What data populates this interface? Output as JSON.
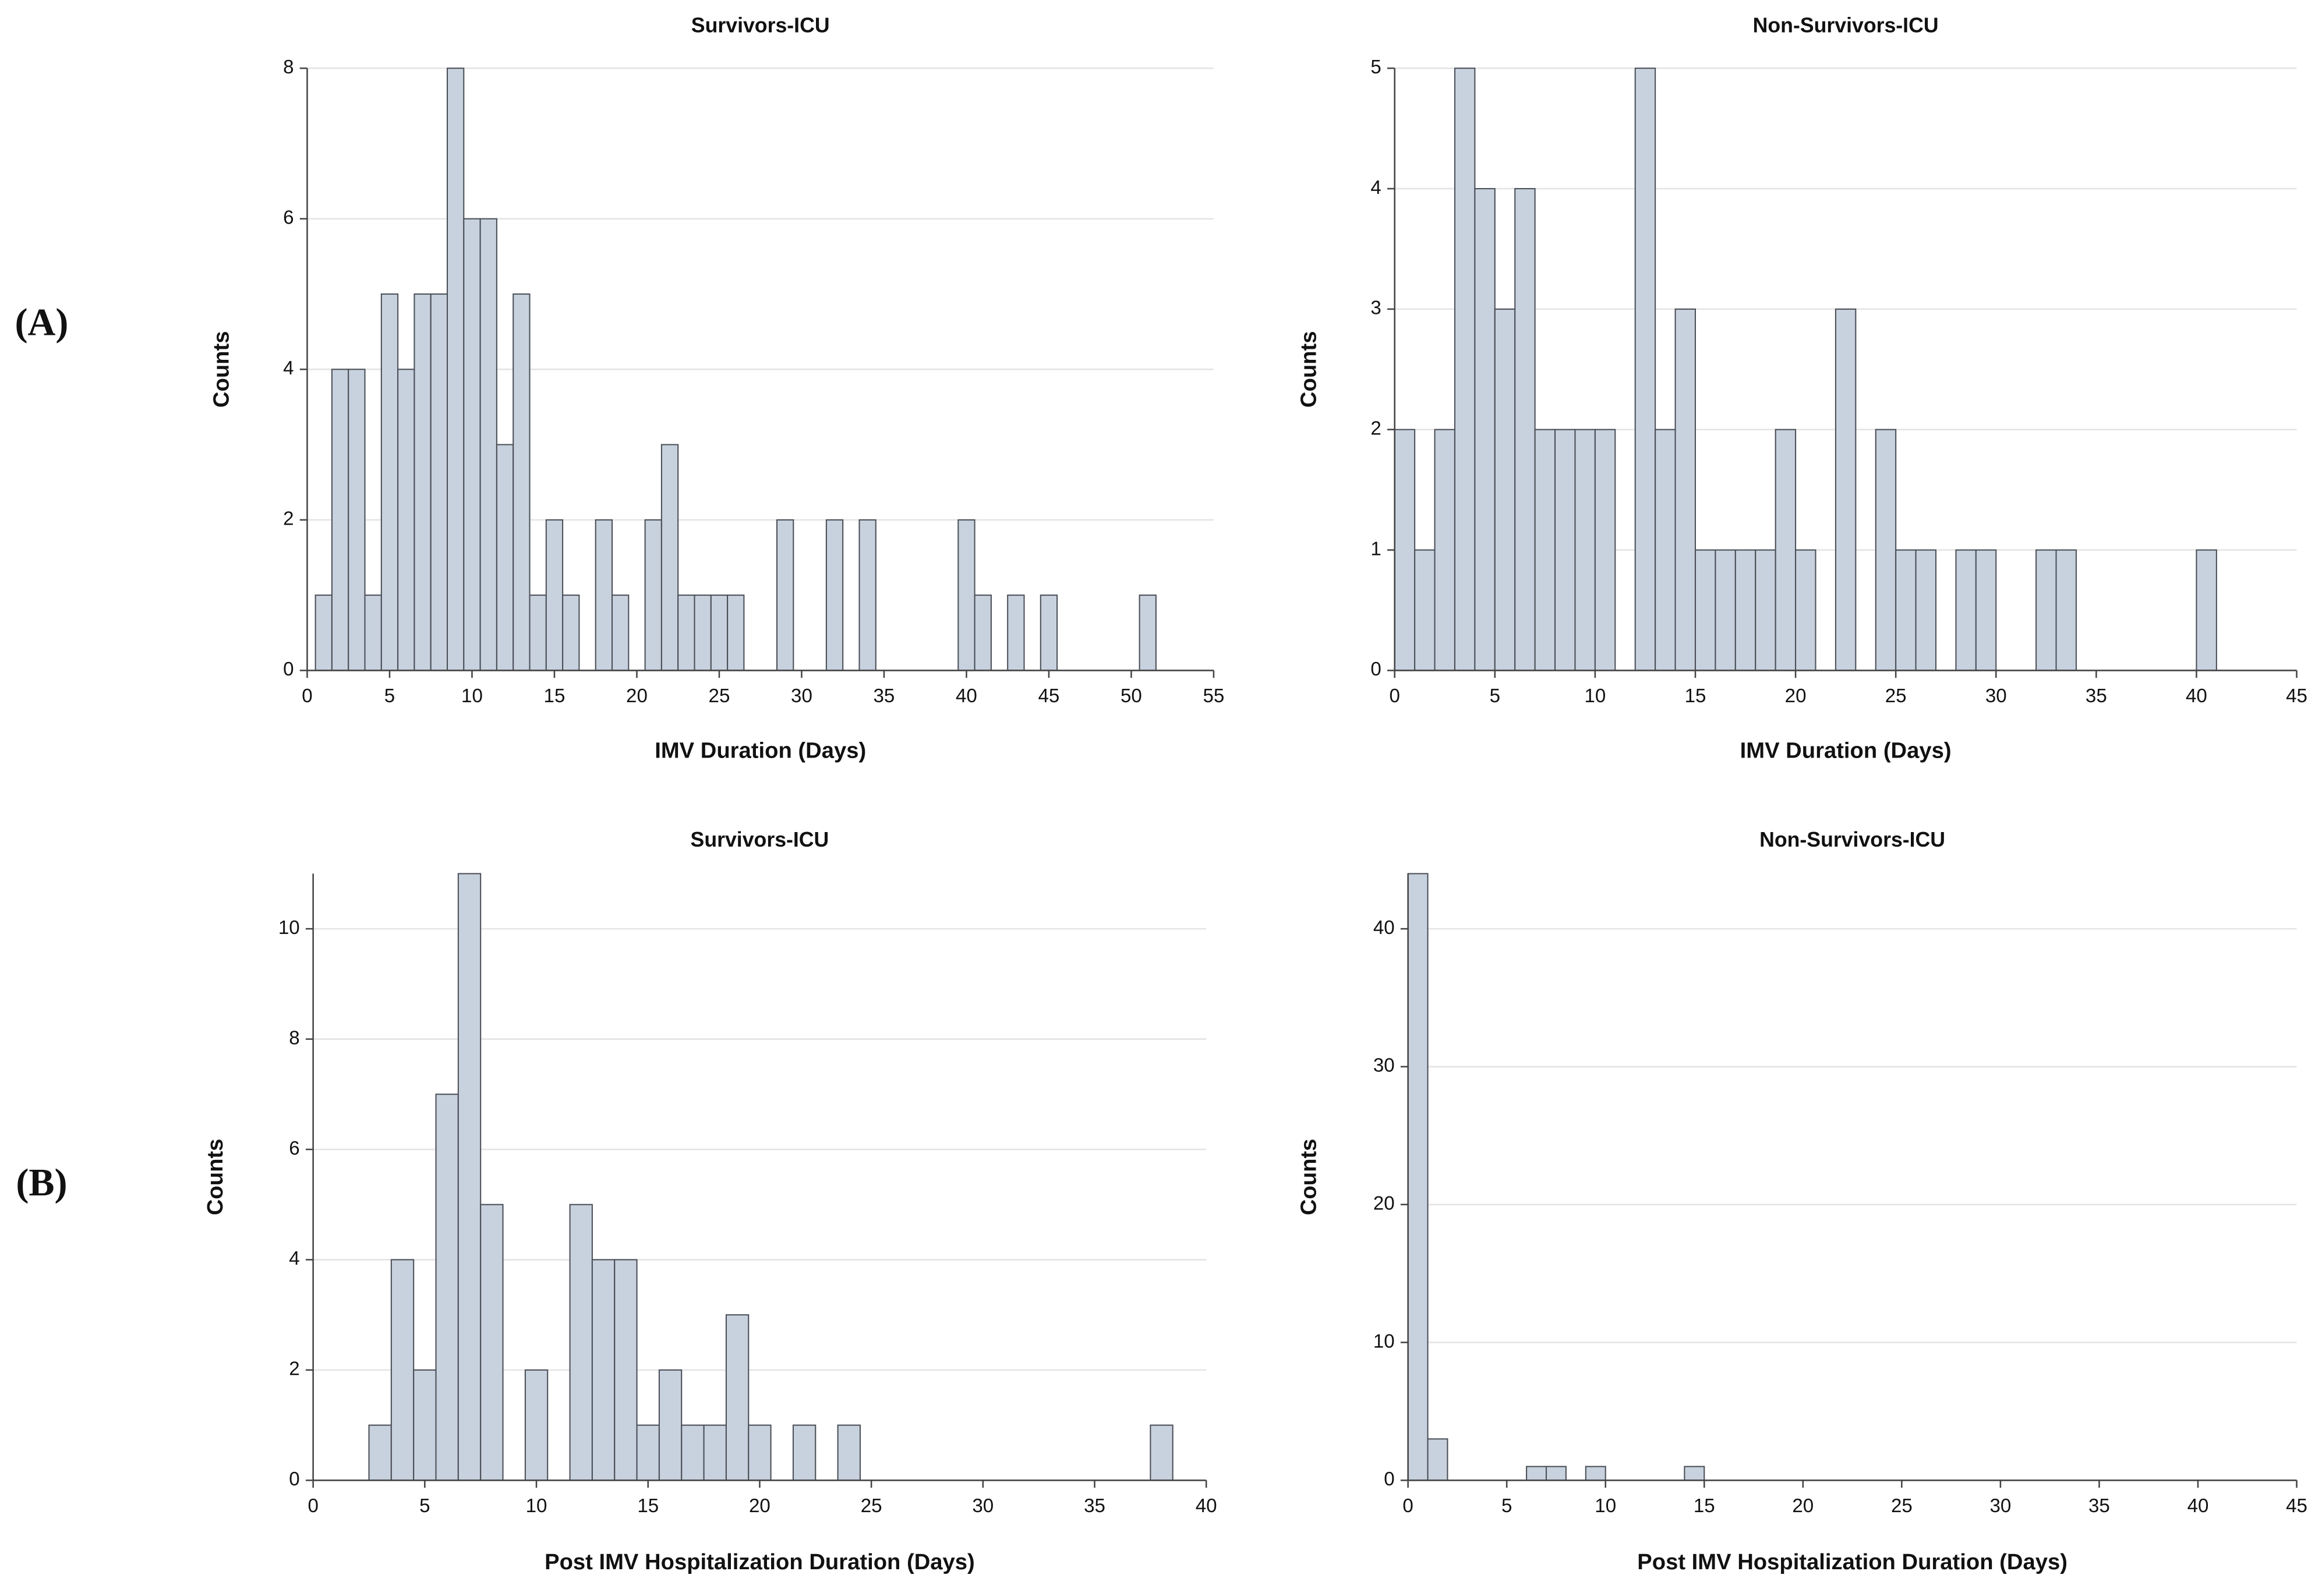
{
  "panel_labels": [
    "(A)",
    "(B)"
  ],
  "chart_data": [
    {
      "type": "histogram",
      "title": "Survivors-ICU",
      "xlabel": "IMV Duration (Days)",
      "ylabel": "Counts",
      "color": "#c8d1de",
      "grid": true,
      "bins": [
        0.5,
        1.5,
        2.5,
        3.5,
        4.5,
        5.5,
        6.5,
        7.5,
        8.5,
        9.5,
        10.5,
        11.5,
        12.5,
        13.5,
        14.5,
        15.5,
        16.5,
        17.5,
        18.5,
        19.5,
        20.5,
        21.5,
        22.5,
        23.5,
        24.5,
        25.5,
        26.5,
        27.5,
        28.5,
        29.5,
        30.5,
        31.5,
        32.5,
        33.5,
        34.5,
        35.5,
        36.5,
        37.5,
        38.5,
        39.5,
        40.5,
        41.5,
        42.5,
        43.5,
        44.5,
        45.5,
        46.5,
        47.5,
        48.5,
        49.5,
        50.5,
        51.5
      ],
      "values": [
        1,
        4,
        4,
        1,
        5,
        4,
        5,
        5,
        8,
        6,
        6,
        3,
        5,
        1,
        2,
        1,
        0,
        2,
        1,
        0,
        2,
        3,
        1,
        1,
        1,
        1,
        0,
        0,
        2,
        0,
        0,
        2,
        0,
        2,
        0,
        0,
        0,
        0,
        0,
        2,
        1,
        0,
        1,
        0,
        1,
        0,
        0,
        0,
        0,
        0,
        1
      ],
      "xlim": [
        0,
        55
      ],
      "xticks": [
        0,
        5,
        10,
        15,
        20,
        25,
        30,
        35,
        40,
        45,
        50,
        55
      ],
      "ylim": [
        0,
        8
      ],
      "yticks": [
        0,
        2,
        4,
        6,
        8
      ]
    },
    {
      "type": "histogram",
      "title": "Non-Survivors-ICU",
      "xlabel": "IMV Duration (Days)",
      "ylabel": "Counts",
      "color": "#c8d1de",
      "grid": true,
      "bins": [
        0,
        1,
        2,
        3,
        4,
        5,
        6,
        7,
        8,
        9,
        10,
        11,
        12,
        13,
        14,
        15,
        16,
        17,
        18,
        19,
        20,
        21,
        22,
        23,
        24,
        25,
        26,
        27,
        28,
        29,
        30,
        31,
        32,
        33,
        34,
        35,
        36,
        37,
        38,
        39,
        40,
        41
      ],
      "values": [
        2,
        1,
        2,
        5,
        4,
        3,
        4,
        2,
        2,
        2,
        2,
        0,
        5,
        2,
        3,
        1,
        1,
        1,
        1,
        2,
        1,
        0,
        3,
        0,
        2,
        1,
        1,
        0,
        1,
        1,
        0,
        0,
        1,
        1,
        0,
        0,
        0,
        0,
        0,
        0,
        1
      ],
      "xlim": [
        0,
        45
      ],
      "xticks": [
        0,
        5,
        10,
        15,
        20,
        25,
        30,
        35,
        40,
        45
      ],
      "ylim": [
        0,
        5
      ],
      "yticks": [
        0,
        1,
        2,
        3,
        4,
        5
      ]
    },
    {
      "type": "histogram",
      "title": "Survivors-ICU",
      "xlabel": "Post IMV Hospitalization Duration (Days)",
      "ylabel": "Counts",
      "color": "#c8d1de",
      "grid": true,
      "bins": [
        2.5,
        3.5,
        4.5,
        5.5,
        6.5,
        7.5,
        8.5,
        9.5,
        10.5,
        11.5,
        12.5,
        13.5,
        14.5,
        15.5,
        16.5,
        17.5,
        18.5,
        19.5,
        20.5,
        21.5,
        22.5,
        23.5,
        24.5,
        25.5,
        26.5,
        27.5,
        28.5,
        29.5,
        30.5,
        31.5,
        32.5,
        33.5,
        34.5,
        35.5,
        36.5,
        37.5,
        38.5
      ],
      "values": [
        1,
        4,
        2,
        7,
        11,
        5,
        0,
        2,
        0,
        5,
        4,
        4,
        1,
        2,
        1,
        1,
        3,
        1,
        0,
        1,
        0,
        1,
        0,
        0,
        0,
        0,
        0,
        0,
        0,
        0,
        0,
        0,
        0,
        0,
        0,
        1
      ],
      "xlim": [
        0,
        40
      ],
      "xticks": [
        0,
        5,
        10,
        15,
        20,
        25,
        30,
        35,
        40
      ],
      "ylim": [
        0,
        11
      ],
      "yticks": [
        0,
        2,
        4,
        6,
        8,
        10
      ]
    },
    {
      "type": "histogram",
      "title": "Non-Survivors-ICU",
      "xlabel": "Post IMV Hospitalization Duration (Days)",
      "ylabel": "Counts",
      "color": "#c8d1de",
      "grid": true,
      "bins": [
        0,
        1,
        2,
        3,
        4,
        5,
        6,
        7,
        8,
        9,
        10,
        11,
        12,
        13,
        14,
        15
      ],
      "values": [
        44,
        3,
        0,
        0,
        0,
        0,
        1,
        1,
        0,
        1,
        0,
        0,
        0,
        0,
        1
      ],
      "xlim": [
        0,
        45
      ],
      "xticks": [
        0,
        5,
        10,
        15,
        20,
        25,
        30,
        35,
        40,
        45
      ],
      "ylim": [
        0,
        44
      ],
      "yticks": [
        0,
        10,
        20,
        30,
        40
      ]
    }
  ]
}
